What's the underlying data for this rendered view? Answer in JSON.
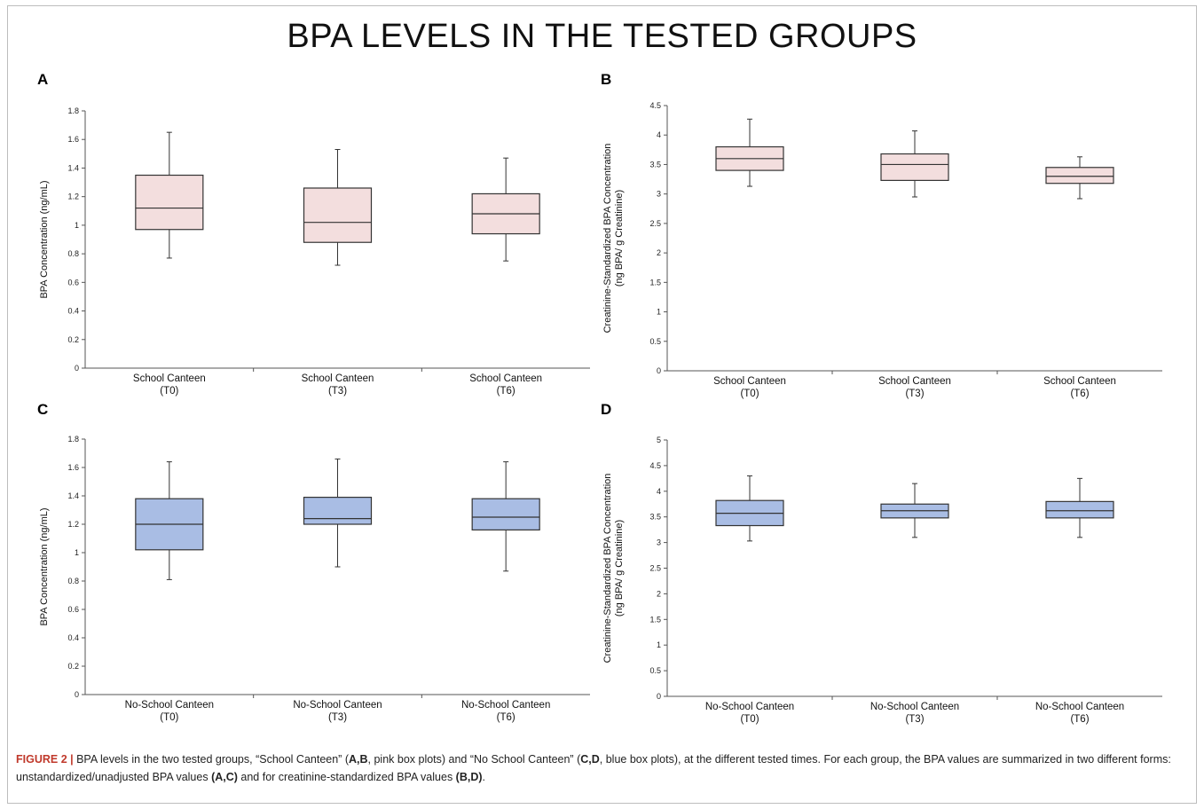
{
  "title": "BPA LEVELS IN THE TESTED GROUPS",
  "colors": {
    "pink_fill": "#f3dede",
    "blue_fill": "#a9bde4",
    "box_stroke": "#333333",
    "figure_label": "#c0392b"
  },
  "caption": {
    "fig": "FIGURE 2 |",
    "t1": " BPA levels in the two tested groups, “School Canteen” (",
    "b1": "A,B",
    "t2": ", pink box plots) and “No School Canteen” (",
    "b2": "C,D",
    "t3": ", blue box plots), at the different tested times. For each group, the BPA values are summarized in two different forms: unstandardized/unadjusted BPA values ",
    "b3": "(A,C)",
    "t4": " and for creatinine-standardized BPA values ",
    "b4": "(B,D)",
    "t5": "."
  },
  "chart_data": [
    {
      "panel": "A",
      "type": "box",
      "color": "pink",
      "ylabel": "BPA Concentration (ng/mL)",
      "ylim": [
        0,
        1.8
      ],
      "yticks": [
        "0",
        "0.2",
        "0.4",
        "0.6",
        "0.8",
        "1",
        "1.2",
        "1.4",
        "1.6",
        "1.8"
      ],
      "categories": [
        [
          "School Canteen",
          "(T0)"
        ],
        [
          "School Canteen",
          "(T3)"
        ],
        [
          "School Canteen",
          "(T6)"
        ]
      ],
      "boxes": [
        {
          "min": 0.77,
          "q1": 0.97,
          "median": 1.12,
          "q3": 1.35,
          "max": 1.65
        },
        {
          "min": 0.72,
          "q1": 0.88,
          "median": 1.02,
          "q3": 1.26,
          "max": 1.53
        },
        {
          "min": 0.75,
          "q1": 0.94,
          "median": 1.08,
          "q3": 1.22,
          "max": 1.47
        }
      ]
    },
    {
      "panel": "B",
      "type": "box",
      "color": "pink",
      "ylabel": "Creatinine-Standardized BPA Concentration",
      "ylabel2": "(ng BPA/ g Creatinine)",
      "ylim": [
        0,
        4.5
      ],
      "yticks": [
        "0",
        "0.5",
        "1",
        "1.5",
        "2",
        "2.5",
        "3",
        "3.5",
        "4",
        "4.5"
      ],
      "categories": [
        [
          "School Canteen",
          "(T0)"
        ],
        [
          "School Canteen",
          "(T3)"
        ],
        [
          "School Canteen",
          "(T6)"
        ]
      ],
      "boxes": [
        {
          "min": 3.13,
          "q1": 3.4,
          "median": 3.6,
          "q3": 3.8,
          "max": 4.27
        },
        {
          "min": 2.95,
          "q1": 3.23,
          "median": 3.5,
          "q3": 3.68,
          "max": 4.07
        },
        {
          "min": 2.92,
          "q1": 3.18,
          "median": 3.3,
          "q3": 3.45,
          "max": 3.63
        }
      ]
    },
    {
      "panel": "C",
      "type": "box",
      "color": "blue",
      "ylabel": "BPA Concentration (ng/mL)",
      "ylim": [
        0,
        1.8
      ],
      "yticks": [
        "0",
        "0.2",
        "0.4",
        "0.6",
        "0.8",
        "1",
        "1.2",
        "1.4",
        "1.6",
        "1.8"
      ],
      "categories": [
        [
          "No-School Canteen",
          "(T0)"
        ],
        [
          "No-School Canteen",
          "(T3)"
        ],
        [
          "No-School Canteen",
          "(T6)"
        ]
      ],
      "boxes": [
        {
          "min": 0.81,
          "q1": 1.02,
          "median": 1.2,
          "q3": 1.38,
          "max": 1.64
        },
        {
          "min": 0.9,
          "q1": 1.2,
          "median": 1.24,
          "q3": 1.39,
          "max": 1.66
        },
        {
          "min": 0.87,
          "q1": 1.16,
          "median": 1.25,
          "q3": 1.38,
          "max": 1.64
        }
      ]
    },
    {
      "panel": "D",
      "type": "box",
      "color": "blue",
      "ylabel": "Creatinine-Standardized BPA Concentration",
      "ylabel2": "(ng BPA/ g Creatinine)",
      "ylim": [
        0,
        5
      ],
      "yticks": [
        "0",
        "0.5",
        "1",
        "1.5",
        "2",
        "2.5",
        "3",
        "3.5",
        "4",
        "4.5",
        "5"
      ],
      "categories": [
        [
          "No-School Canteen",
          "(T0)"
        ],
        [
          "No-School Canteen",
          "(T3)"
        ],
        [
          "No-School Canteen",
          "(T6)"
        ]
      ],
      "boxes": [
        {
          "min": 3.03,
          "q1": 3.33,
          "median": 3.57,
          "q3": 3.82,
          "max": 4.3
        },
        {
          "min": 3.1,
          "q1": 3.48,
          "median": 3.62,
          "q3": 3.75,
          "max": 4.15
        },
        {
          "min": 3.1,
          "q1": 3.48,
          "median": 3.62,
          "q3": 3.8,
          "max": 4.25
        }
      ]
    }
  ]
}
